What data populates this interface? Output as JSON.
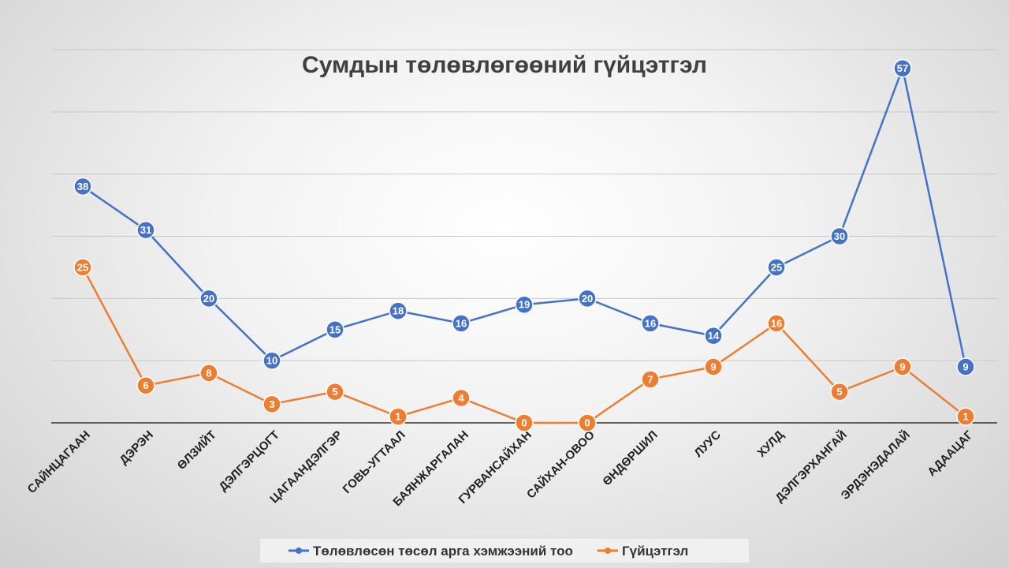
{
  "chart_data": {
    "type": "line",
    "title": "Сумдын төлөвлөгөөний гүйцэтгэл",
    "xlabel": "",
    "ylabel": "",
    "ylim": [
      0,
      60
    ],
    "grid": true,
    "legend_position": "bottom",
    "categories": [
      "САЙНЦАГААН",
      "ДЭРЭН",
      "ӨЛЗИЙТ",
      "ДЭЛГЭРЦОГТ",
      "ЦАГААНДЭЛГЭР",
      "ГОВЬ-УГТААЛ",
      "БАЯНЖАРГАЛАН",
      "ГУРВАНСАЙХАН",
      "САЙХАН-ОВОО",
      "ӨНДӨРШИЛ",
      "ЛУУС",
      "ХУЛД",
      "ДЭЛГЭРХАНГАЙ",
      "ЭРДЭНЭДАЛАЙ",
      "АДААЦАГ"
    ],
    "series": [
      {
        "name": "Төлөвлөсөн төсөл арга хэмжээний тоо",
        "color": "#4472c4",
        "values": [
          38,
          31,
          20,
          10,
          15,
          18,
          16,
          19,
          20,
          16,
          14,
          25,
          30,
          57,
          9
        ]
      },
      {
        "name": "Гүйцэтгэл",
        "color": "#ed7d31",
        "values": [
          25,
          6,
          8,
          3,
          5,
          1,
          4,
          0,
          0,
          7,
          9,
          16,
          5,
          9,
          1
        ]
      }
    ]
  }
}
